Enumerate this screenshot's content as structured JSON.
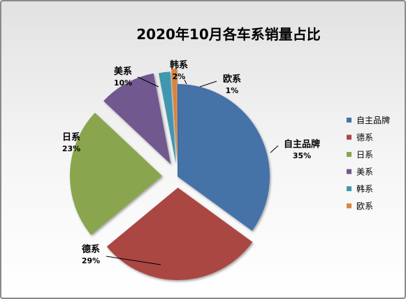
{
  "chart_data": {
    "type": "pie",
    "title": "2020年10月各车系销量占比",
    "categories": [
      "自主品牌",
      "德系",
      "日系",
      "美系",
      "韩系",
      "欧系"
    ],
    "values": [
      35,
      29,
      23,
      10,
      2,
      1
    ],
    "value_labels": [
      "35%",
      "29%",
      "23%",
      "10%",
      "2%",
      "1%"
    ],
    "colors": [
      "#4572a7",
      "#aa4643",
      "#89a54e",
      "#71588f",
      "#4198af",
      "#db843d"
    ],
    "exploded": true,
    "legend": "right"
  }
}
